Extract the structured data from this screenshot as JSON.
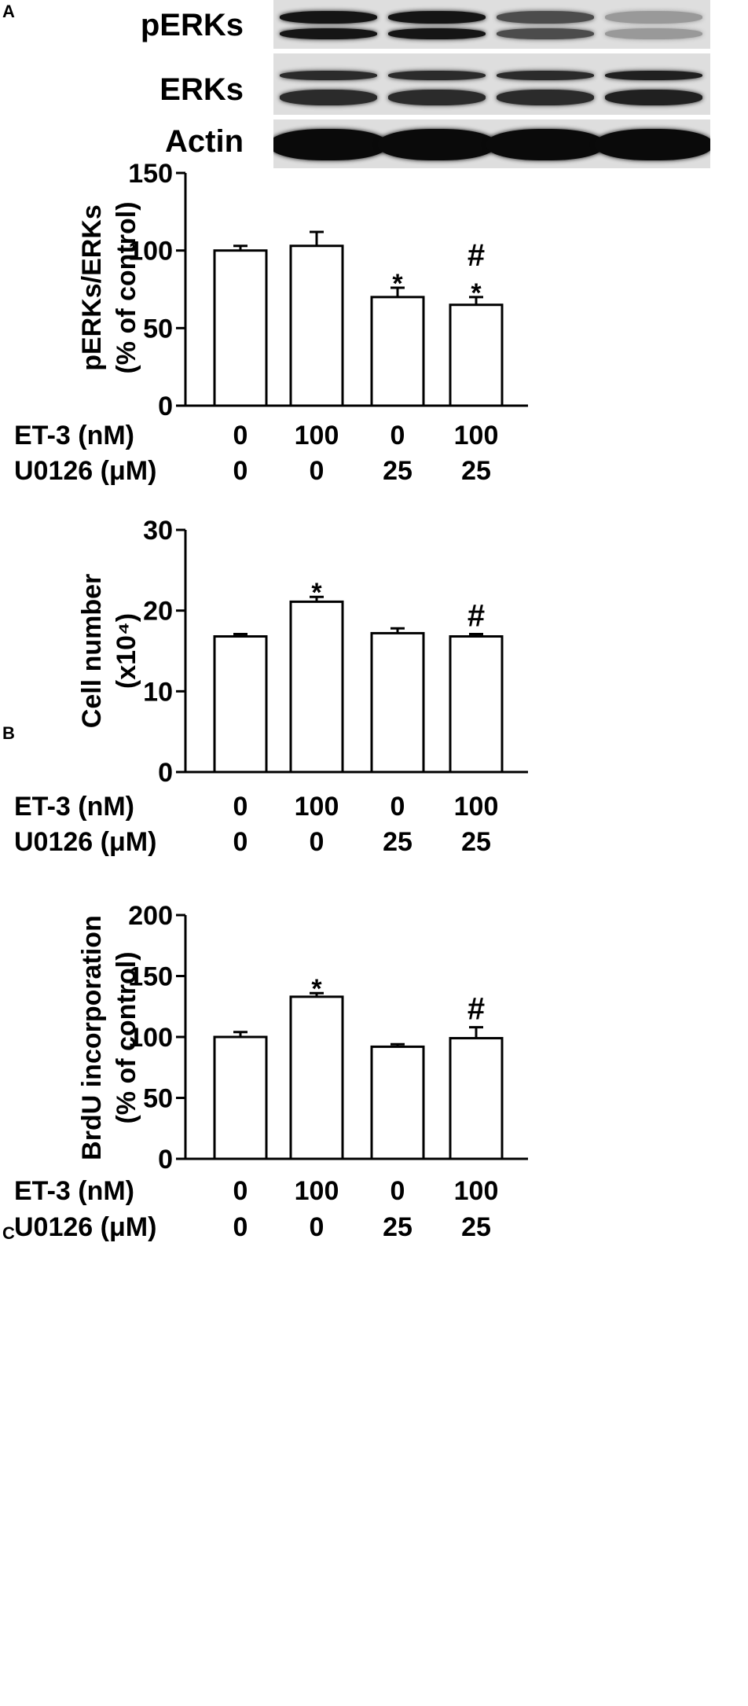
{
  "panel_labels": [
    "A",
    "B",
    "C"
  ],
  "blots": {
    "rows": [
      {
        "label": "pERKs",
        "lane_intensity": [
          0.95,
          0.95,
          0.7,
          0.35
        ]
      },
      {
        "label": "ERKs",
        "lane_intensity": [
          0.85,
          0.85,
          0.85,
          0.9
        ]
      },
      {
        "label": "Actin",
        "lane_intensity": [
          1.0,
          1.0,
          1.0,
          1.0
        ]
      }
    ]
  },
  "conditions": {
    "et3_label": "ET-3 (nM)",
    "u0126_label": "U0126 (μM)",
    "et3_values": [
      "0",
      "100",
      "0",
      "100"
    ],
    "u0126_values": [
      "0",
      "0",
      "25",
      "25"
    ]
  },
  "chart_data": [
    {
      "type": "bar",
      "title": "",
      "ylabel_lines": [
        "pERKs/ERKs",
        "(% of control)"
      ],
      "ylim": [
        0,
        150
      ],
      "yticks": [
        0,
        50,
        100,
        150
      ],
      "categories": [
        "0 / 0",
        "100 / 0",
        "0 / 25",
        "100 / 25"
      ],
      "values": [
        100,
        103,
        70,
        65
      ],
      "errors": [
        3,
        9,
        6,
        5
      ],
      "significance": [
        [],
        [],
        [
          "*"
        ],
        [
          "*",
          "#"
        ]
      ]
    },
    {
      "type": "bar",
      "title": "",
      "ylabel_lines": [
        "Cell number",
        "(x10⁴)"
      ],
      "ylim": [
        0,
        30
      ],
      "yticks": [
        0,
        10,
        20,
        30
      ],
      "categories": [
        "0 / 0",
        "100 / 0",
        "0 / 25",
        "100 / 25"
      ],
      "values": [
        16.8,
        21.1,
        17.2,
        16.8
      ],
      "errors": [
        0.3,
        0.6,
        0.6,
        0.3
      ],
      "significance": [
        [],
        [
          "*"
        ],
        [],
        [
          "#"
        ]
      ]
    },
    {
      "type": "bar",
      "title": "",
      "ylabel_lines": [
        "BrdU incorporation",
        "(% of control)"
      ],
      "ylim": [
        0,
        200
      ],
      "yticks": [
        0,
        50,
        100,
        150,
        200
      ],
      "categories": [
        "0 / 0",
        "100 / 0",
        "0 / 25",
        "100 / 25"
      ],
      "values": [
        100,
        133,
        92,
        99
      ],
      "errors": [
        4,
        3,
        2,
        9
      ],
      "significance": [
        [],
        [
          "*"
        ],
        [],
        [
          "#"
        ]
      ]
    }
  ]
}
